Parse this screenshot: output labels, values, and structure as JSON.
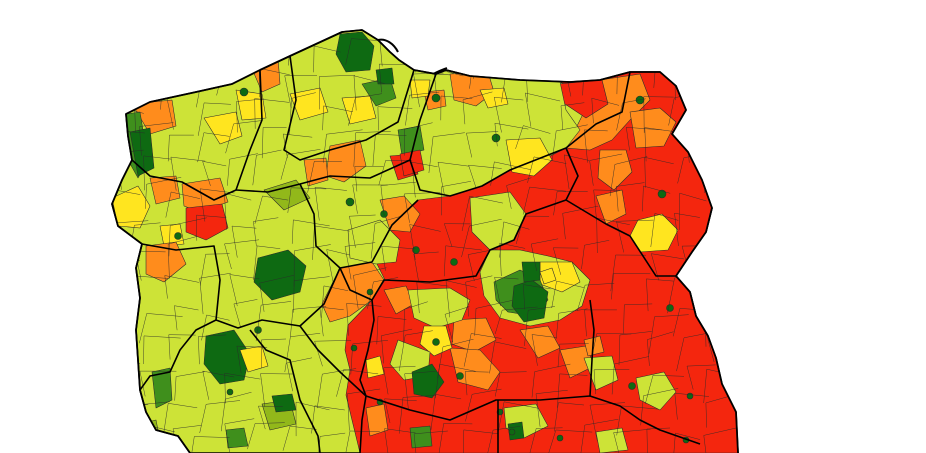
{
  "map": {
    "palette": {
      "dark-green": "#0e6a12",
      "green": "#3f8f1c",
      "light-green": "#92b81a",
      "yellow-green": "#cde337",
      "yellow": "#ffe51f",
      "orange": "#ff8c1c",
      "red": "#f4260e"
    }
  }
}
